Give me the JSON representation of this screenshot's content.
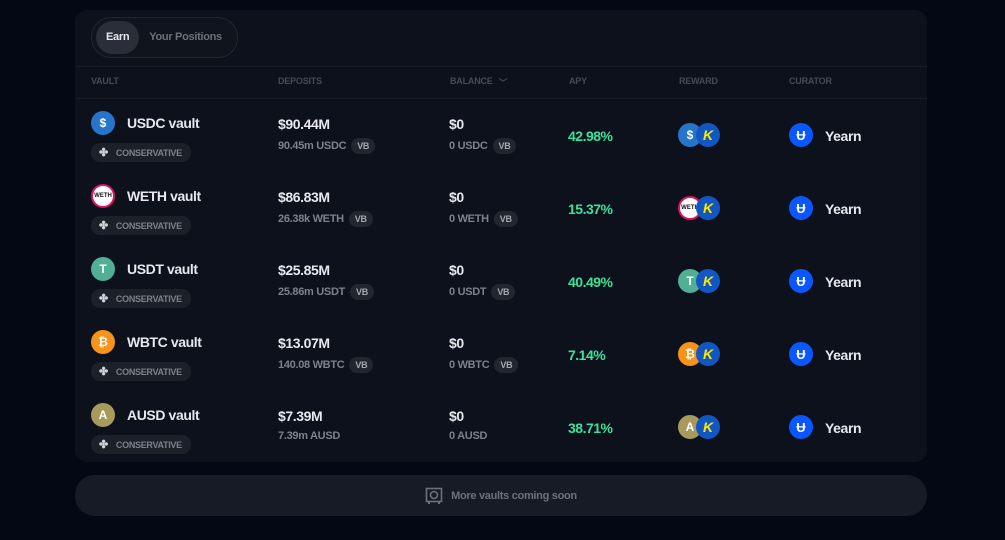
{
  "tabs": [
    {
      "label": "Earn",
      "active": true
    },
    {
      "label": "Your Positions",
      "active": false
    }
  ],
  "headers": {
    "vault": "VAULT",
    "deposits": "DEPOSITS",
    "balance": "BALANCE",
    "apy": "APY",
    "reward": "REWARD",
    "curator": "CURATOR"
  },
  "rows": [
    {
      "name": "USDC vault",
      "risk": "CONSERVATIVE",
      "deposits_usd": "$90.44M",
      "deposits_token": "90.45m USDC",
      "deposits_vb": "VB",
      "balance_usd": "$0",
      "balance_token": "0 USDC",
      "balance_vb": "VB",
      "apy": "42.98%",
      "curator": "Yearn",
      "icon": "usdc-icon",
      "color": "#2775ca",
      "glyph": "$"
    },
    {
      "name": "WETH vault",
      "risk": "CONSERVATIVE",
      "deposits_usd": "$86.83M",
      "deposits_token": "26.38k WETH",
      "deposits_vb": "VB",
      "balance_usd": "$0",
      "balance_token": "0 WETH",
      "balance_vb": "VB",
      "apy": "15.37%",
      "curator": "Yearn",
      "icon": "weth-icon",
      "color": "#ffffff",
      "glyph": "WETH"
    },
    {
      "name": "USDT vault",
      "risk": "CONSERVATIVE",
      "deposits_usd": "$25.85M",
      "deposits_token": "25.86m USDT",
      "deposits_vb": "VB",
      "balance_usd": "$0",
      "balance_token": "0 USDT",
      "balance_vb": "VB",
      "apy": "40.49%",
      "curator": "Yearn",
      "icon": "usdt-icon",
      "color": "#50af95",
      "glyph": "T"
    },
    {
      "name": "WBTC vault",
      "risk": "CONSERVATIVE",
      "deposits_usd": "$13.07M",
      "deposits_token": "140.08 WBTC",
      "deposits_vb": "VB",
      "balance_usd": "$0",
      "balance_token": "0 WBTC",
      "balance_vb": "VB",
      "apy": "7.14%",
      "curator": "Yearn",
      "icon": "wbtc-icon",
      "color": "#f7931a",
      "glyph": "₿"
    },
    {
      "name": "AUSD vault",
      "risk": "CONSERVATIVE",
      "deposits_usd": "$7.39M",
      "deposits_token": "7.39m AUSD",
      "balance_usd": "$0",
      "balance_token": "0 AUSD",
      "apy": "38.71%",
      "curator": "Yearn",
      "icon": "ausd-icon",
      "color": "#a89a5c",
      "glyph": "A"
    }
  ],
  "footer": {
    "label": "More vaults coming soon"
  },
  "colors": {
    "apy": "#3de29a",
    "background": "#040814",
    "card": "#0c111c"
  }
}
